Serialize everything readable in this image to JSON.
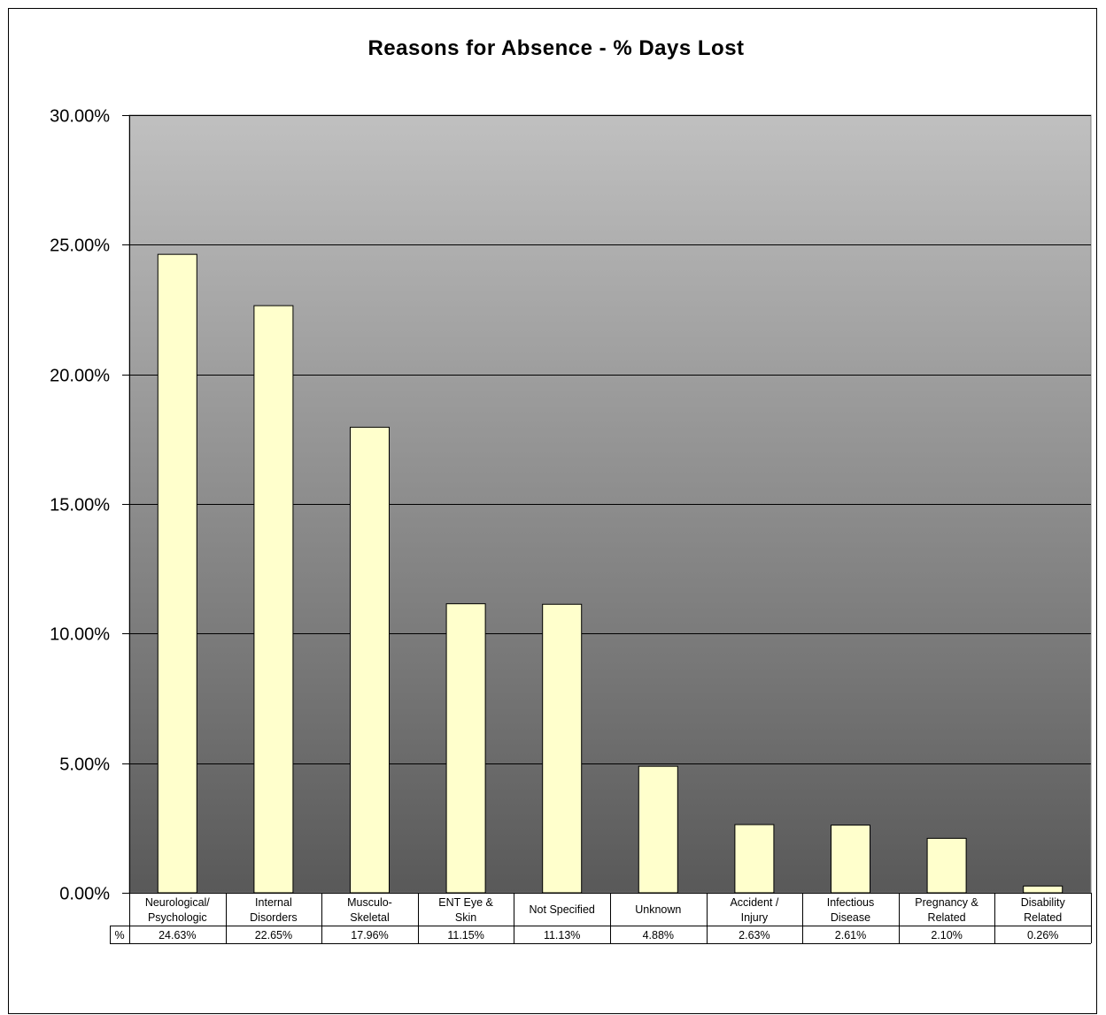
{
  "chart_data": {
    "type": "bar",
    "title": "Reasons for Absence - % Days Lost",
    "xlabel": "",
    "ylabel": "",
    "ylim": [
      0,
      30
    ],
    "yticks": [
      "0.00%",
      "5.00%",
      "10.00%",
      "15.00%",
      "20.00%",
      "25.00%",
      "30.00%"
    ],
    "grid": true,
    "legend": "none",
    "categories": [
      "Neurological/\nPsychologic",
      "Internal\nDisorders",
      "Musculo-\nSkeletal",
      "ENT Eye &\nSkin",
      "Not Specified",
      "Unknown",
      "Accident /\nInjury",
      "Infectious\nDisease",
      "Pregnancy &\nRelated",
      "Disability\nRelated"
    ],
    "series": [
      {
        "name": "%",
        "values": [
          24.63,
          22.65,
          17.96,
          11.15,
          11.13,
          4.88,
          2.63,
          2.61,
          2.1,
          0.26
        ],
        "labels": [
          "24.63%",
          "22.65%",
          "17.96%",
          "11.15%",
          "11.13%",
          "4.88%",
          "2.63%",
          "2.61%",
          "2.10%",
          "0.26%"
        ]
      }
    ],
    "colors": {
      "bar_fill": "#ffffcc",
      "bar_stroke": "#000000",
      "plot_top": "#c0c0c0",
      "plot_bottom": "#595959",
      "grid": "#000000"
    }
  }
}
